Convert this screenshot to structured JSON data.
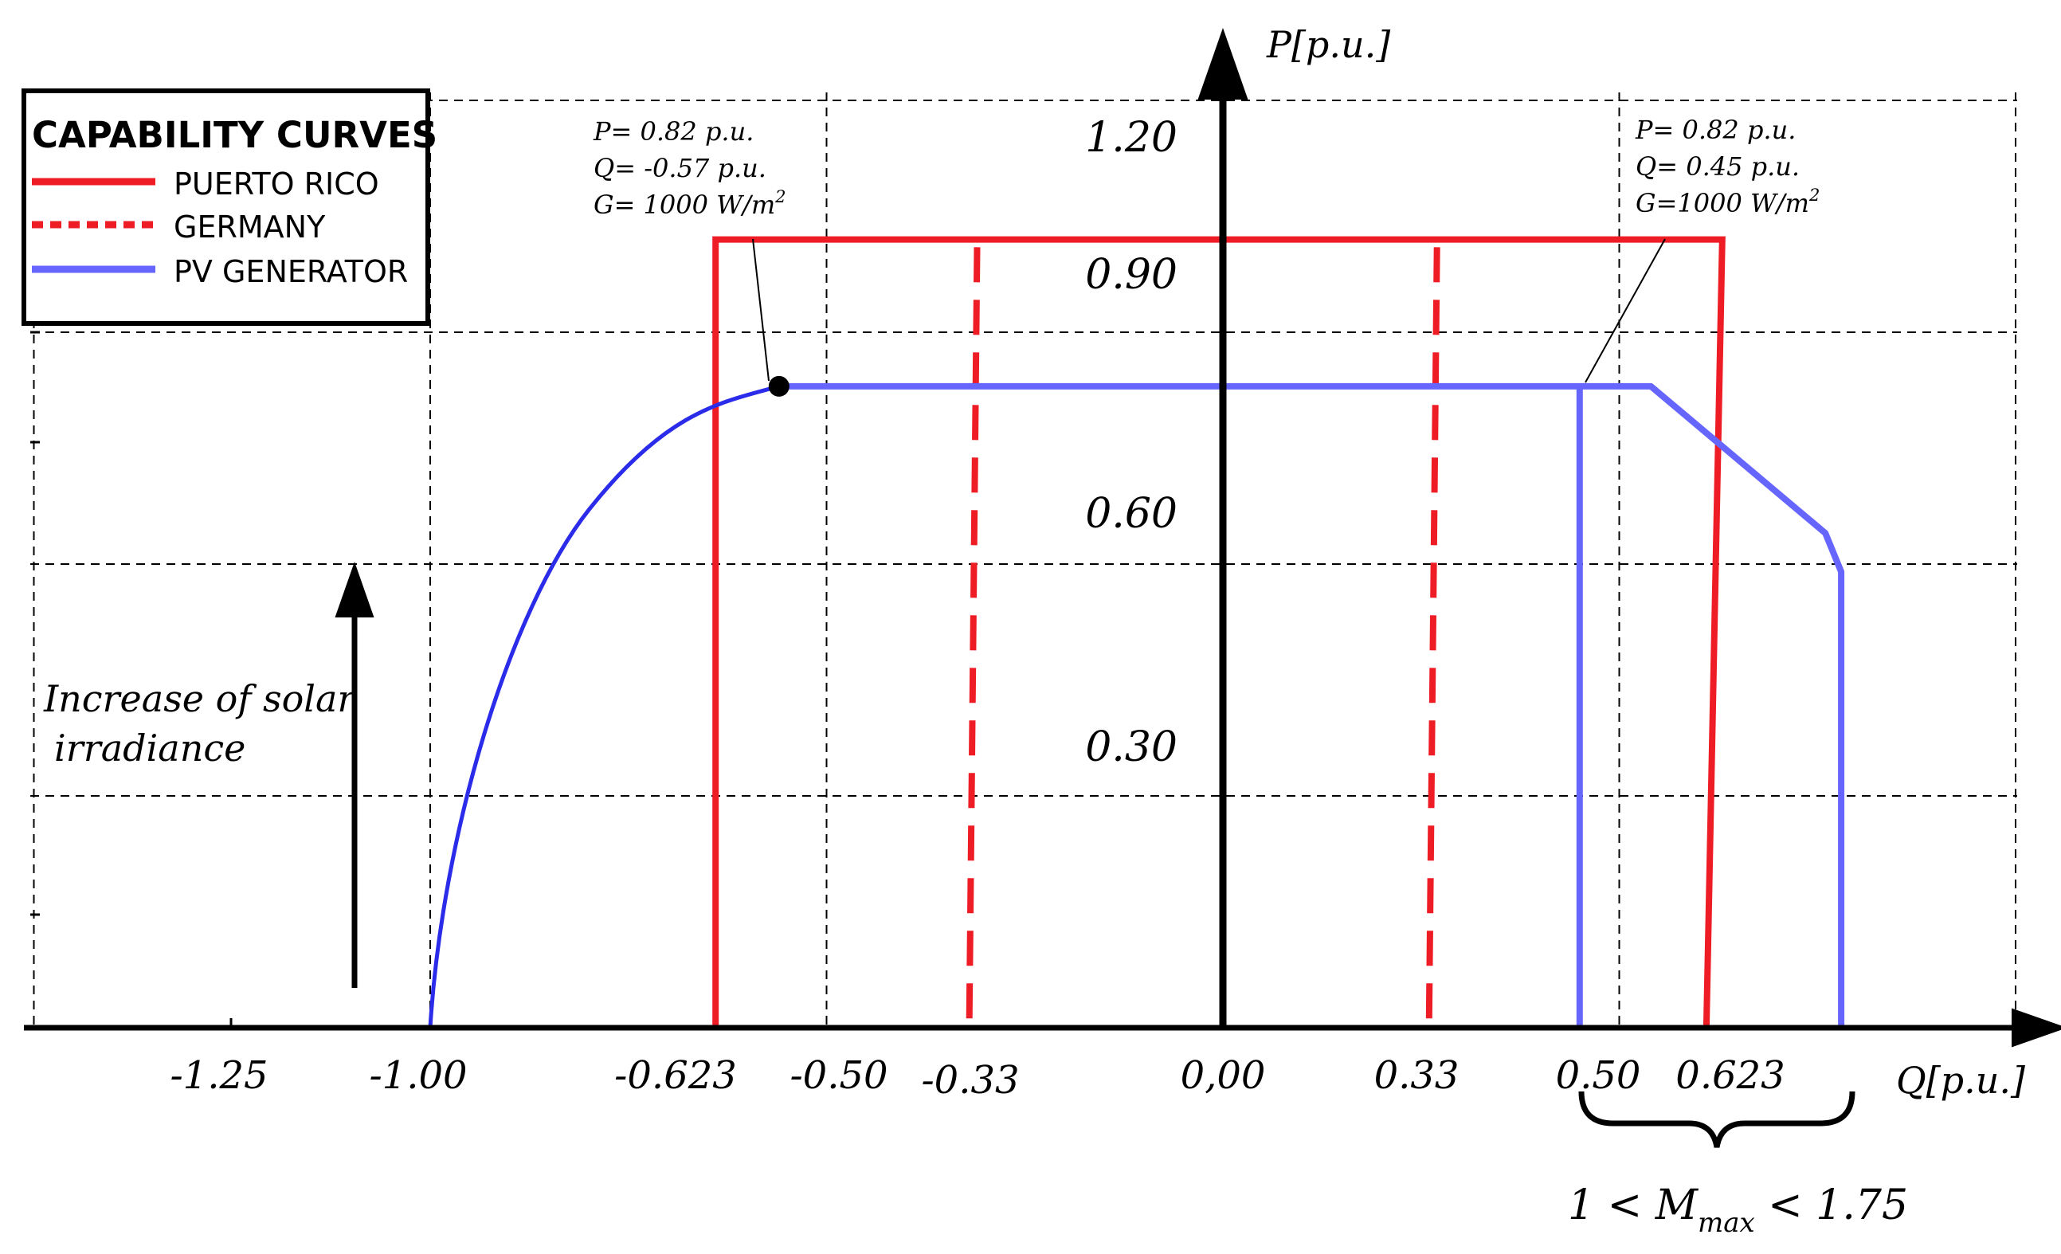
{
  "chart_data": {
    "type": "line",
    "axis_labels": {
      "x": "Q[p.u.]",
      "y": "P[p.u.]"
    },
    "x_ticks": [
      {
        "value": -1.25,
        "label": "-1.25"
      },
      {
        "value": -1.0,
        "label": "-1.00"
      },
      {
        "value": -0.623,
        "label": "-0.623"
      },
      {
        "value": -0.5,
        "label": "-0.50"
      },
      {
        "value": -0.33,
        "label": "-0.33"
      },
      {
        "value": 0.0,
        "label": "0,00"
      },
      {
        "value": 0.33,
        "label": "0.33"
      },
      {
        "value": 0.5,
        "label": "0.50"
      },
      {
        "value": 0.623,
        "label": "0.623"
      }
    ],
    "y_ticks": [
      {
        "value": 1.2,
        "label": "1.20"
      },
      {
        "value": 0.9,
        "label": "0.90"
      },
      {
        "value": 0.6,
        "label": "0.60"
      },
      {
        "value": 0.3,
        "label": "0.30"
      }
    ],
    "xlim": [
      -1.5,
      1.0
    ],
    "ylim": [
      0,
      1.2
    ],
    "grid": "dashed",
    "legend": {
      "title": "CAPABILITY CURVES",
      "placement": "top-left",
      "entries": [
        {
          "label": "PUERTO RICO",
          "color": "#ee1c24",
          "style": "solid"
        },
        {
          "label": "GERMANY",
          "color": "#ee1c24",
          "style": "dashed"
        },
        {
          "label": "PV GENERATOR",
          "color": "#6666ff",
          "style": "solid"
        }
      ]
    },
    "series": [
      {
        "name": "PUERTO RICO",
        "color": "#ee1c24",
        "style": "solid",
        "points": [
          [
            -0.64,
            0
          ],
          [
            -0.64,
            1.02
          ],
          [
            0.63,
            1.02
          ],
          [
            0.61,
            0
          ]
        ]
      },
      {
        "name": "GERMANY",
        "color": "#ee1c24",
        "style": "dashed",
        "segments": [
          [
            [
              -0.31,
              1.01
            ],
            [
              -0.32,
              0
            ]
          ],
          [
            [
              0.27,
              1.01
            ],
            [
              0.26,
              0
            ]
          ]
        ]
      },
      {
        "name": "PV GENERATOR",
        "color": "#6666ff",
        "style": "solid",
        "points": [
          [
            -1.0,
            0
          ],
          [
            -0.96,
            0.36
          ],
          [
            -0.85,
            0.61
          ],
          [
            -0.72,
            0.75
          ],
          [
            -0.56,
            0.83
          ],
          [
            0.54,
            0.83
          ],
          [
            0.76,
            0.64
          ],
          [
            0.78,
            0.59
          ],
          [
            0.78,
            0
          ]
        ],
        "extra_segments": [
          [
            [
              0.45,
              0.83
            ],
            [
              0.45,
              0
            ]
          ]
        ]
      }
    ],
    "annotations": [
      {
        "lines": [
          "P= 0.82  p.u.",
          "Q= -0.57 p.u.",
          "G= 1000 W/m"
        ],
        "superscript": "2",
        "point": [
          -0.56,
          0.83
        ]
      },
      {
        "lines": [
          "P= 0.82  p.u.",
          "Q= 0.45 p.u.",
          "G=1000 W/m"
        ],
        "superscript": "2",
        "point": [
          0.45,
          0.83
        ]
      },
      {
        "lines": [
          "Increase of solar",
          "irradiance"
        ]
      },
      {
        "text": "1 < M",
        "subscript": "max",
        "suffix": " < 1.75"
      }
    ],
    "colors": {
      "red": "#ee1c24",
      "pv": "#6666ff",
      "pv_dark": "#2b2bea",
      "axis": "#000000",
      "grid": "#000000"
    }
  }
}
